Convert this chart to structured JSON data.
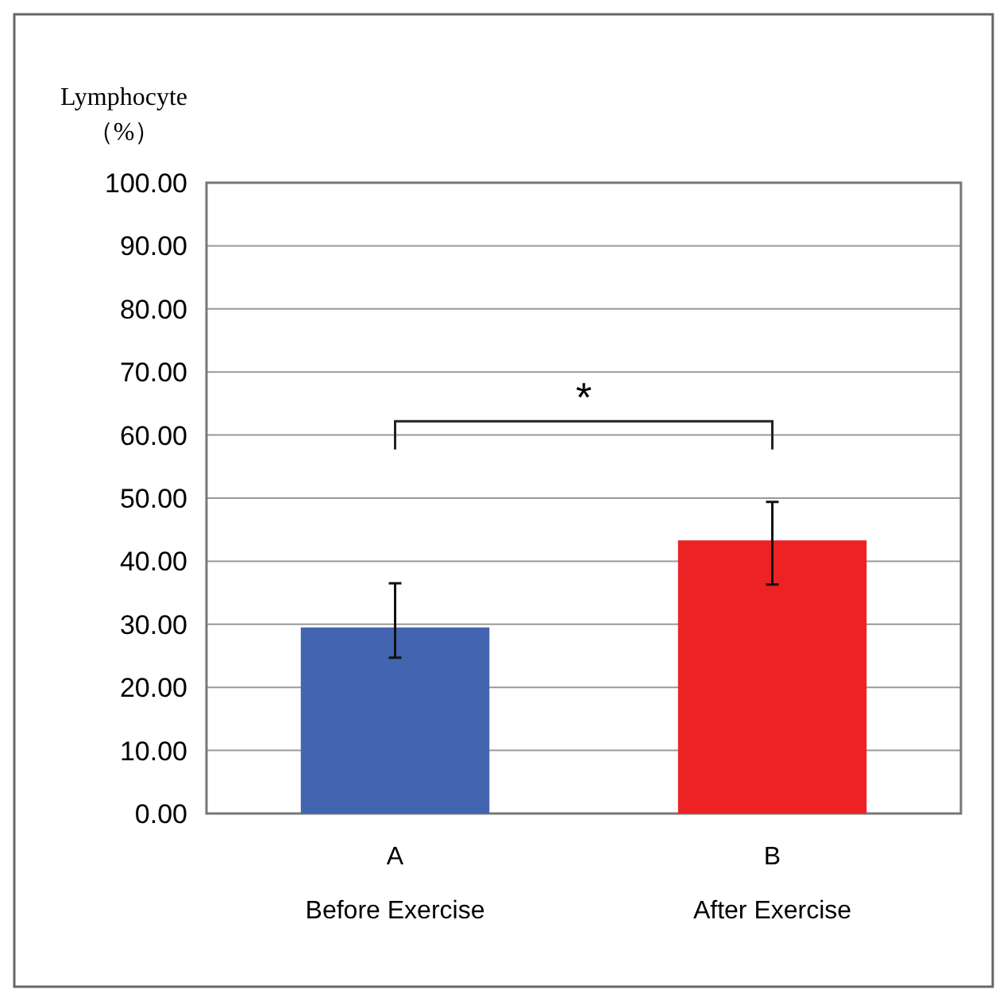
{
  "chart_data": {
    "type": "bar",
    "ylabel": "Lymphocyte\n（%）",
    "categories": [
      "A\nBefore Exercise",
      "B\nAfter Exercise"
    ],
    "values": [
      29.5,
      43.3
    ],
    "colors": [
      "#4364ae",
      "#ed2224"
    ],
    "errors": [
      [
        24.7,
        36.5
      ],
      [
        36.3,
        49.4
      ]
    ],
    "ylim": [
      0,
      100
    ],
    "yticks": [
      {
        "value": 0,
        "label": "0.00"
      },
      {
        "value": 10,
        "label": "10.00"
      },
      {
        "value": 20,
        "label": "20.00"
      },
      {
        "value": 30,
        "label": "30.00"
      },
      {
        "value": 40,
        "label": "40.00"
      },
      {
        "value": 50,
        "label": "50.00"
      },
      {
        "value": 60,
        "label": "60.00"
      },
      {
        "value": 70,
        "label": "70.00"
      },
      {
        "value": 80,
        "label": "80.00"
      },
      {
        "value": 90,
        "label": "90.00"
      },
      {
        "value": 100,
        "label": "100.00"
      }
    ],
    "grid": "y",
    "annotations": [
      "*"
    ]
  }
}
